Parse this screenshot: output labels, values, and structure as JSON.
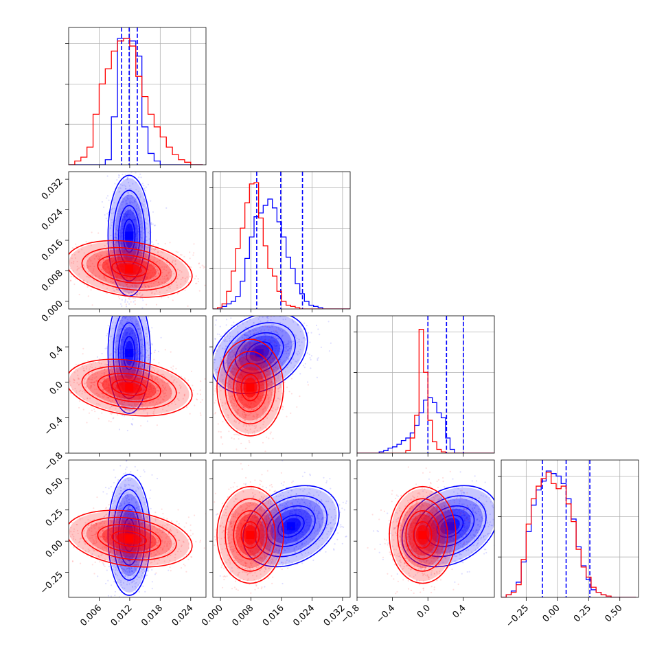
{
  "chart_data": {
    "type": "corner",
    "title": "",
    "colors": {
      "series_a": "#0000ff",
      "series_b": "#ff0000"
    },
    "grid": true,
    "parameters": [
      {
        "range": [
          0.0,
          0.027
        ],
        "ticks": [
          0.006,
          0.012,
          0.018,
          0.024
        ],
        "tick_labels": [
          "0.006",
          "0.012",
          "0.018",
          "0.024"
        ]
      },
      {
        "range": [
          -0.002,
          0.034
        ],
        "ticks": [
          0.0,
          0.008,
          0.016,
          0.024,
          0.032
        ],
        "tick_labels": [
          "0.000",
          "0.008",
          "0.016",
          "0.024",
          "0.032"
        ]
      },
      {
        "range": [
          -0.8,
          0.75
        ],
        "ticks": [
          -0.8,
          -0.4,
          0.0,
          0.4
        ],
        "tick_labels": [
          "−0.8",
          "−0.4",
          "0.0",
          "0.4"
        ]
      },
      {
        "range": [
          -0.45,
          0.65
        ],
        "ticks": [
          -0.25,
          0.0,
          0.25,
          0.5
        ],
        "tick_labels": [
          "−0.25",
          "0.00",
          "0.25",
          "0.50"
        ]
      }
    ],
    "series": [
      {
        "color": "#0000ff",
        "quantiles": [
          [
            0.0104,
            0.0119,
            0.0135
          ],
          [
            0.0095,
            0.0158,
            0.0215
          ],
          [
            0.0,
            0.21,
            0.4
          ],
          [
            -0.12,
            0.07,
            0.26
          ]
        ],
        "histograms": [
          {
            "start": 0.0,
            "width": 0.0012,
            "counts": [
              0,
              0,
              0,
              0,
              0,
              0,
              4,
              38,
              100,
              100,
              98,
              86,
              30,
              9,
              3,
              0,
              0,
              0,
              0,
              0,
              0,
              0
            ]
          },
          {
            "start": -0.002,
            "width": 0.0012,
            "counts": [
              0,
              0,
              2,
              4,
              6,
              10,
              22,
              40,
              57,
              73,
              76,
              82,
              87,
              80,
              69,
              57,
              41,
              32,
              20,
              12,
              6,
              3,
              2,
              1,
              0,
              0,
              0,
              0,
              0,
              0
            ]
          },
          {
            "start": -0.8,
            "width": 0.05,
            "counts": [
              0,
              0,
              0,
              0,
              0,
              1,
              2,
              4,
              5,
              7,
              10,
              12,
              16,
              22,
              32,
              42,
              44,
              40,
              32,
              28,
              12,
              3,
              0,
              0,
              0,
              0,
              0,
              0,
              0,
              0,
              0
            ]
          },
          {
            "start": -0.45,
            "width": 0.04,
            "counts": [
              0,
              2,
              5,
              12,
              28,
              52,
              73,
              85,
              92,
              100,
              98,
              96,
              90,
              78,
              62,
              40,
              25,
              14,
              6,
              4,
              2,
              1,
              0,
              0,
              0,
              0,
              0
            ]
          }
        ],
        "modes": [
          [
            0.0119,
            0.0172
          ],
          [
            0.0119,
            0.33
          ],
          [
            0.0102,
            0.33
          ],
          [
            0.0119,
            0.05
          ],
          [
            0.0185,
            0.12
          ],
          [
            0.25,
            0.12
          ]
        ]
      },
      {
        "color": "#ff0000",
        "quantiles": [],
        "histograms": [
          {
            "start": 0.0,
            "width": 0.0012,
            "counts": [
              0,
              3,
              6,
              14,
              40,
              64,
              76,
              90,
              98,
              100,
              94,
              70,
              54,
              40,
              30,
              22,
              14,
              8,
              4,
              2,
              0,
              0
            ]
          },
          {
            "start": -0.002,
            "width": 0.0012,
            "counts": [
              0,
              1,
              4,
              14,
              30,
              48,
              64,
              84,
              99,
              100,
              72,
              50,
              32,
              26,
              14,
              6,
              3,
              2,
              1,
              0,
              0,
              0,
              0,
              0,
              0,
              0,
              0,
              0,
              0,
              0
            ]
          },
          {
            "start": -0.8,
            "width": 0.05,
            "counts": [
              0,
              0,
              0,
              0,
              0,
              0,
              0,
              0,
              0,
              0,
              0,
              2,
              12,
              30,
              98,
              64,
              26,
              9,
              3,
              1,
              0,
              0,
              0,
              0,
              0,
              0,
              0,
              0,
              0,
              0,
              0
            ]
          },
          {
            "start": -0.45,
            "width": 0.04,
            "counts": [
              0,
              2,
              4,
              10,
              30,
              58,
              78,
              88,
              94,
              99,
              90,
              86,
              88,
              74,
              60,
              38,
              24,
              16,
              8,
              4,
              2,
              1,
              0,
              0,
              0,
              0,
              0
            ]
          }
        ],
        "modes": [
          [
            0.0119,
            0.0085
          ],
          [
            0.0119,
            -0.06
          ],
          [
            0.0078,
            -0.06
          ],
          [
            0.0119,
            0.02
          ],
          [
            0.0078,
            0.05
          ],
          [
            -0.06,
            0.05
          ]
        ]
      }
    ]
  }
}
